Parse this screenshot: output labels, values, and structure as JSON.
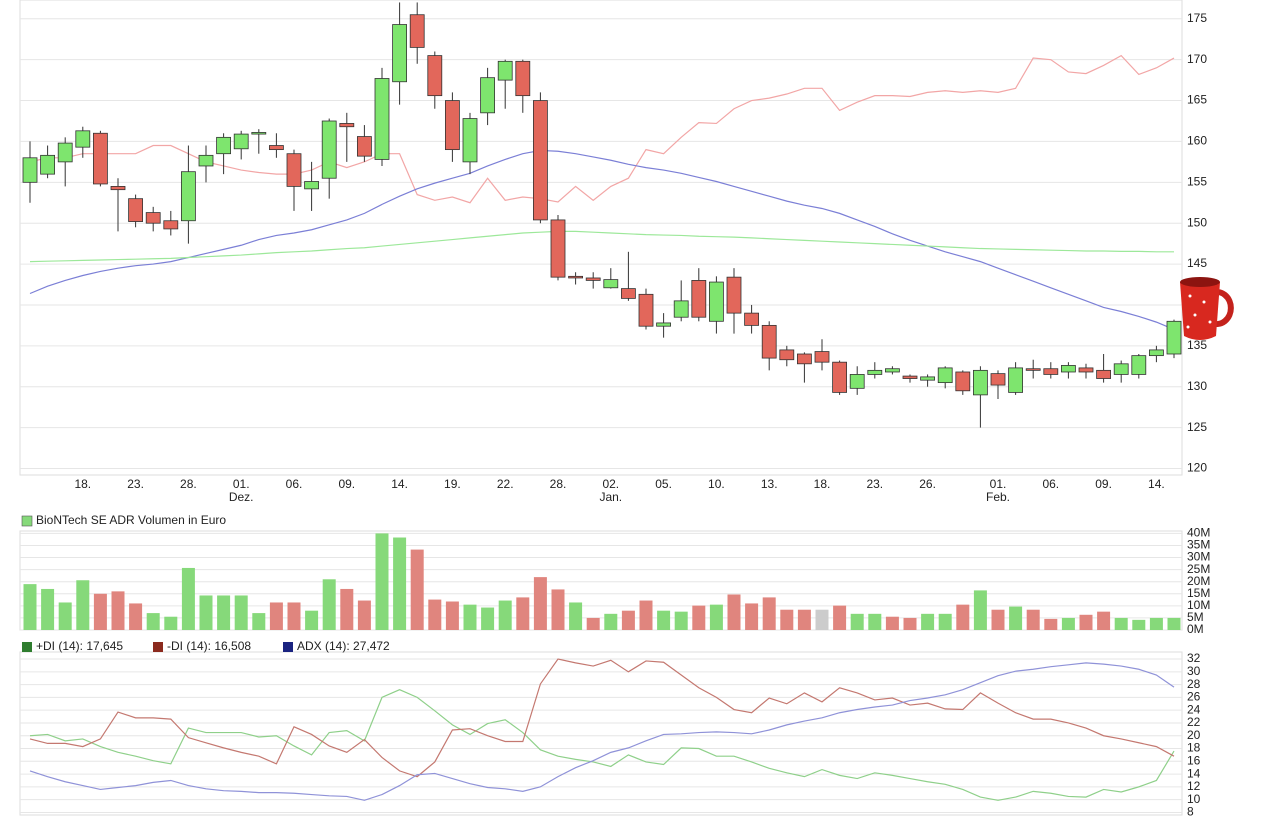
{
  "chart_data": [
    {
      "type": "candlestick",
      "up_color": "#7ee56e",
      "down_color": "#e2675b",
      "grid": true,
      "ylim": [
        119.2,
        177.3
      ],
      "yticks": [
        120,
        125,
        130,
        135,
        140,
        145,
        150,
        155,
        160,
        165,
        170,
        175
      ],
      "categories": [
        null,
        null,
        null,
        "18.",
        null,
        null,
        "23.",
        null,
        null,
        "28.",
        null,
        null,
        "01.",
        null,
        null,
        "06.",
        null,
        null,
        "09.",
        null,
        null,
        "14.",
        null,
        null,
        "19.",
        null,
        null,
        "22.",
        null,
        null,
        "28.",
        null,
        null,
        "02.",
        null,
        null,
        "05.",
        null,
        null,
        "10.",
        null,
        null,
        "13.",
        null,
        null,
        "18.",
        null,
        null,
        "23.",
        null,
        null,
        "26.",
        null,
        null,
        null,
        "01.",
        null,
        null,
        "06.",
        null,
        null,
        "09.",
        null,
        null,
        "14.",
        null
      ],
      "months": [
        null,
        null,
        null,
        null,
        null,
        null,
        null,
        null,
        null,
        null,
        null,
        null,
        "Dez.",
        null,
        null,
        null,
        null,
        null,
        null,
        null,
        null,
        null,
        null,
        null,
        null,
        null,
        null,
        null,
        null,
        null,
        null,
        null,
        null,
        "Jan.",
        null,
        null,
        null,
        null,
        null,
        null,
        null,
        null,
        null,
        null,
        null,
        null,
        null,
        null,
        null,
        null,
        null,
        null,
        null,
        null,
        null,
        "Feb.",
        null,
        null,
        null,
        null,
        null,
        null,
        null,
        null,
        null,
        null
      ],
      "open": [
        155,
        156,
        157.5,
        159.3,
        161,
        154.5,
        153,
        151.3,
        150.3,
        150.3,
        157,
        158.5,
        159.1,
        160.9,
        159.5,
        158.5,
        154.2,
        155.5,
        162.2,
        160.6,
        157.8,
        167.3,
        175.5,
        170.5,
        165,
        157.5,
        163.5,
        167.5,
        169.8,
        165,
        150.4,
        143.5,
        143.3,
        142.1,
        142,
        141.3,
        137.4,
        138.5,
        143,
        138,
        143.4,
        139,
        137.5,
        134.5,
        134,
        134.3,
        133,
        129.8,
        131.5,
        131.8,
        131.3,
        130.8,
        130.5,
        131.8,
        129,
        131.6,
        129.3,
        132.2,
        132.2,
        131.8,
        132.3,
        132,
        131.5,
        131.5,
        133.8,
        134
      ],
      "high": [
        160,
        159.5,
        160.5,
        161.8,
        161.3,
        155.5,
        153.5,
        152,
        151.5,
        159.5,
        159.5,
        161,
        161.3,
        161.5,
        161,
        159,
        157.5,
        162.8,
        163.5,
        162,
        169,
        177,
        177,
        171,
        166,
        163.5,
        169,
        170,
        170,
        166,
        151,
        144,
        144,
        144.5,
        146.5,
        142,
        139,
        143,
        144.5,
        143.5,
        144.5,
        140,
        138,
        135,
        134.2,
        135.8,
        133.2,
        132.5,
        133,
        132.5,
        131.5,
        131.5,
        132.5,
        132,
        132.5,
        132,
        133,
        133.3,
        133,
        133,
        132.8,
        134,
        133.2,
        134,
        135,
        138.2
      ],
      "low": [
        152.5,
        155.5,
        154.5,
        158,
        154.5,
        149,
        149.5,
        149,
        148.5,
        147.5,
        155,
        156,
        157.8,
        158.5,
        158,
        151.5,
        151.5,
        153,
        157.5,
        157.5,
        157,
        164.5,
        169.5,
        164,
        157.5,
        156,
        162,
        164,
        163.5,
        150,
        143,
        142.5,
        142,
        142,
        140.5,
        137,
        136,
        138,
        138,
        136.5,
        136.5,
        136.5,
        132,
        132.5,
        130.5,
        132,
        129,
        129,
        131,
        131.5,
        130.5,
        130,
        129.8,
        129,
        125,
        128.5,
        129,
        131,
        131,
        131,
        131,
        130.5,
        130.5,
        131,
        133,
        133.5
      ],
      "close": [
        158,
        158.3,
        159.8,
        161.3,
        154.8,
        154.1,
        150.2,
        150,
        149.3,
        156.3,
        158.3,
        160.5,
        160.9,
        161.1,
        159,
        154.5,
        155.1,
        162.5,
        161.8,
        158.2,
        167.7,
        174.3,
        171.5,
        165.6,
        159,
        162.8,
        167.8,
        169.8,
        165.6,
        150.4,
        143.4,
        143.3,
        143,
        143.1,
        140.8,
        137.4,
        137.8,
        140.5,
        138.5,
        142.8,
        139,
        137.5,
        133.5,
        133.3,
        132.8,
        133,
        129.3,
        131.5,
        132,
        132.2,
        131,
        131.2,
        132.3,
        129.5,
        132,
        130.2,
        132.3,
        132,
        131.5,
        132.6,
        131.8,
        131,
        132.8,
        133.8,
        134.5,
        138
      ],
      "overlays": [
        {
          "color": "#f2a6a6",
          "values": [
            157.5,
            158,
            158,
            158.5,
            158.5,
            158.5,
            158.5,
            159.5,
            159.5,
            158.5,
            157.5,
            157,
            156.5,
            156.2,
            156,
            156,
            156.5,
            157.5,
            156.8,
            157.5,
            158.5,
            158.5,
            153.5,
            152.8,
            153.2,
            152.5,
            155.5,
            152.8,
            153.2,
            153,
            152.6,
            154.5,
            152.8,
            154.5,
            155.5,
            159,
            158.5,
            160.5,
            162.3,
            162.2,
            164,
            165,
            165.3,
            165.8,
            166.5,
            166.5,
            163.8,
            164.8,
            165.6,
            165.6,
            165.5,
            166,
            166.2,
            166,
            166.2,
            166,
            166.5,
            170.2,
            170,
            168.5,
            168.3,
            169.3,
            170.5,
            168.2,
            169,
            170.2
          ]
        },
        {
          "color": "#7b7fd6",
          "values": [
            141.4,
            142.3,
            143,
            143.6,
            144.1,
            144.5,
            144.8,
            145,
            145.3,
            145.8,
            146.3,
            146.8,
            147.3,
            148,
            148.5,
            148.8,
            149.2,
            149.8,
            150.4,
            151.2,
            152.3,
            153.3,
            154.2,
            154.9,
            155.5,
            156.1,
            157,
            157.8,
            158.5,
            158.9,
            158.8,
            158.5,
            158.1,
            157.7,
            157.2,
            156.8,
            156.5,
            156.1,
            155.6,
            155.1,
            154.5,
            153.9,
            153.3,
            152.7,
            152.2,
            151.8,
            151.2,
            150.4,
            149.6,
            148.7,
            147.9,
            147.2,
            146.5,
            145.9,
            145.3,
            144.5,
            143.7,
            142.9,
            142.1,
            141.3,
            140.5,
            139.7,
            139.2,
            138.6,
            137.9,
            137
          ]
        },
        {
          "color": "#9de89a",
          "values": [
            145.3,
            145.35,
            145.4,
            145.45,
            145.5,
            145.55,
            145.6,
            145.65,
            145.7,
            145.8,
            145.9,
            146,
            146.1,
            146.25,
            146.4,
            146.5,
            146.6,
            146.75,
            146.9,
            147,
            147.2,
            147.4,
            147.6,
            147.8,
            148,
            148.2,
            148.4,
            148.6,
            148.8,
            148.9,
            149,
            149,
            148.9,
            148.8,
            148.7,
            148.6,
            148.55,
            148.5,
            148.4,
            148.35,
            148.3,
            148.2,
            148.1,
            148,
            147.9,
            147.8,
            147.7,
            147.6,
            147.5,
            147.4,
            147.3,
            147.2,
            147.1,
            147,
            146.9,
            146.85,
            146.8,
            146.75,
            146.7,
            146.65,
            146.6,
            146.6,
            146.55,
            146.55,
            146.5,
            146.5
          ]
        }
      ]
    },
    {
      "type": "bar",
      "grid": true,
      "ylim": [
        0,
        41
      ],
      "yticks": [
        {
          "value": 0,
          "label": "0M"
        },
        {
          "value": 5,
          "label": "5M"
        },
        {
          "value": 10,
          "label": "10M"
        },
        {
          "value": 15,
          "label": "15M"
        },
        {
          "value": 20,
          "label": "20M"
        },
        {
          "value": 25,
          "label": "25M"
        },
        {
          "value": 30,
          "label": "30M"
        },
        {
          "value": 35,
          "label": "35M"
        },
        {
          "value": 40,
          "label": "40M"
        }
      ],
      "series": [
        {
          "name": "BioNTech SE ADR Volumen in Euro",
          "color": "#86d97a",
          "values": [
            19,
            17,
            11.4,
            20.6,
            15,
            16,
            11,
            7,
            5.5,
            25.7,
            14.3,
            14.3,
            14.3,
            7,
            11.4,
            11.4,
            8,
            21,
            17,
            12.2,
            40,
            38.3,
            33.3,
            12.6,
            11.8,
            10.5,
            9.3,
            12.2,
            13.5,
            21.9,
            16.8,
            11.4,
            5,
            6.7,
            8,
            12.2,
            8,
            7.6,
            10.1,
            10.5,
            14.7,
            11,
            13.5,
            8.4,
            8.4,
            8.4,
            10.1,
            6.7,
            6.7,
            5.5,
            5,
            6.7,
            6.7,
            10.5,
            16.4,
            8.4,
            9.7,
            8.4,
            4.6,
            5,
            6.3,
            7.6,
            5,
            4.2,
            5,
            5
          ],
          "colors": [
            "#86d97a",
            "#86d97a",
            "#86d97a",
            "#86d97a",
            "#e0857e",
            "#e0857e",
            "#e0857e",
            "#86d97a",
            "#86d97a",
            "#86d97a",
            "#86d97a",
            "#86d97a",
            "#86d97a",
            "#86d97a",
            "#e0857e",
            "#e0857e",
            "#86d97a",
            "#86d97a",
            "#e0857e",
            "#e0857e",
            "#86d97a",
            "#86d97a",
            "#e0857e",
            "#e0857e",
            "#e0857e",
            "#86d97a",
            "#86d97a",
            "#86d97a",
            "#e0857e",
            "#e0857e",
            "#e0857e",
            "#86d97a",
            "#e0857e",
            "#86d97a",
            "#e0857e",
            "#e0857e",
            "#86d97a",
            "#86d97a",
            "#e0857e",
            "#86d97a",
            "#e0857e",
            "#e0857e",
            "#e0857e",
            "#e0857e",
            "#e0857e",
            "#cccccc",
            "#e0857e",
            "#86d97a",
            "#86d97a",
            "#e0857e",
            "#e0857e",
            "#86d97a",
            "#86d97a",
            "#e0857e",
            "#86d97a",
            "#e0857e",
            "#86d97a",
            "#e0857e",
            "#e0857e",
            "#86d97a",
            "#e0857e",
            "#e0857e",
            "#86d97a",
            "#86d97a",
            "#86d97a",
            "#86d97a"
          ]
        }
      ]
    },
    {
      "type": "line",
      "grid": true,
      "ylim": [
        7.6,
        33.1
      ],
      "yticks": [
        8,
        10,
        12,
        14,
        16,
        18,
        20,
        22,
        24,
        26,
        28,
        30,
        32
      ],
      "series": [
        {
          "name": "+DI (14): 17,645",
          "color": "#8fd08a",
          "swatch": "#2f7d2f",
          "values": [
            20,
            20.2,
            19.2,
            19.5,
            18.3,
            17.4,
            16.8,
            16.1,
            15.6,
            21.2,
            20.5,
            20.5,
            20.5,
            19.8,
            20,
            18.4,
            17,
            20.5,
            20.8,
            19.2,
            26,
            27.2,
            26,
            23.9,
            21.7,
            20.2,
            21.9,
            22.5,
            20.5,
            17.8,
            16.8,
            16.3,
            15.9,
            15.2,
            17,
            15.9,
            15.5,
            18.1,
            18,
            16.8,
            16.8,
            15.9,
            14.9,
            14.2,
            13.6,
            14.7,
            13.8,
            13.3,
            14.2,
            13.8,
            13.3,
            12.8,
            12.4,
            11.6,
            10.4,
            9.9,
            10.4,
            11.3,
            11,
            10.5,
            10.4,
            11.6,
            11.2,
            12,
            13,
            17.6
          ]
        },
        {
          "name": "-DI (14): 16,508",
          "color": "#c47870",
          "swatch": "#8b2a1e",
          "values": [
            19.5,
            18.8,
            18.8,
            18.3,
            19.5,
            23.7,
            22.8,
            22.8,
            22.6,
            19.7,
            18.9,
            18.1,
            17.4,
            16.8,
            15.6,
            21.4,
            20.2,
            18.4,
            17.4,
            19.4,
            16.6,
            14.5,
            13.6,
            15.9,
            20.9,
            21.1,
            20,
            19.1,
            19.1,
            28.1,
            32,
            31.4,
            30.9,
            31.8,
            30,
            31.7,
            31.5,
            29.5,
            27.5,
            26,
            24.1,
            23.6,
            25.9,
            25,
            26.7,
            25.3,
            27.5,
            26.7,
            25.6,
            25.9,
            24.8,
            25.1,
            24.2,
            24.1,
            26.7,
            25.1,
            23.6,
            22.6,
            22.6,
            22,
            21.2,
            20,
            19.5,
            18.9,
            18.3,
            16.8
          ]
        },
        {
          "name": "ADX (14): 27,472",
          "color": "#8f92d8",
          "swatch": "#1a2380",
          "values": [
            14.5,
            13.6,
            12.8,
            12.2,
            11.6,
            11.9,
            12.2,
            12.7,
            13,
            12.2,
            11.7,
            11.4,
            11.3,
            11.1,
            11.1,
            11,
            10.8,
            10.6,
            10.5,
            9.9,
            10.8,
            12.2,
            13.9,
            14.1,
            13.3,
            12.5,
            11.9,
            11.7,
            11.3,
            12,
            13.6,
            15,
            16.1,
            17.4,
            18.1,
            19.2,
            20.2,
            20.3,
            20.5,
            20.6,
            20.5,
            20.3,
            20.9,
            21.7,
            22.3,
            22.8,
            23.6,
            24.1,
            24.5,
            24.8,
            25.5,
            25.9,
            26.4,
            27.2,
            28.3,
            29.4,
            30.1,
            30.4,
            30.8,
            31.1,
            31.4,
            31.2,
            30.9,
            30.4,
            29.5,
            27.6
          ]
        }
      ]
    }
  ]
}
